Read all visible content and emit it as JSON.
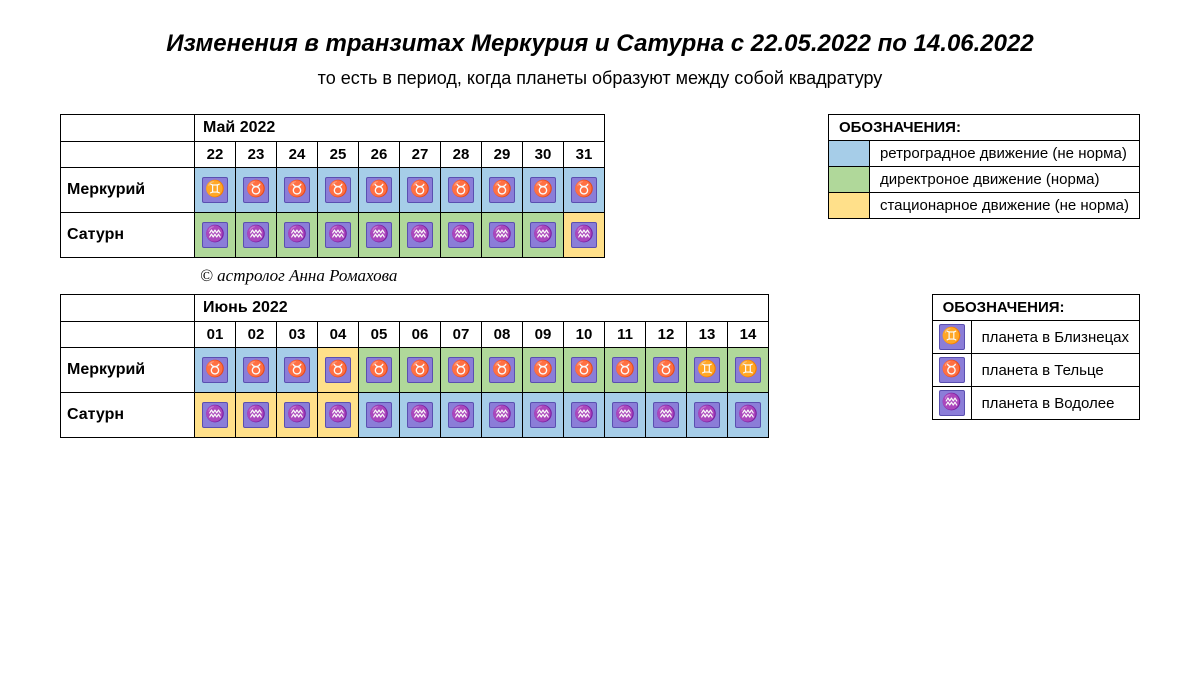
{
  "title": "Изменения в транзитах Меркурия и Сатурна с 22.05.2022 по 14.06.2022",
  "subtitle": "то есть в период, когда планеты образуют между собой квадратуру",
  "credit": "©  астролог Анна Ромахова",
  "colors": {
    "retrograde": "#a6cde8",
    "direct": "#b0d89a",
    "stationary": "#ffe08a",
    "icon_bg": "#8b7dd8",
    "icon_border": "#5a4fb0",
    "border": "#000000"
  },
  "signs": {
    "gemini": {
      "glyph": "♊",
      "label": "планета в Близнецах"
    },
    "taurus": {
      "glyph": "♉",
      "label": "планета в Тельце"
    },
    "aquarius": {
      "glyph": "♒",
      "label": "планета в Водолее"
    }
  },
  "planets": {
    "mercury": "Меркурий",
    "saturn": "Сатурн"
  },
  "may": {
    "month_label": "Май 2022",
    "days": [
      "22",
      "23",
      "24",
      "25",
      "26",
      "27",
      "28",
      "29",
      "30",
      "31"
    ],
    "mercury": [
      {
        "sign": "gemini",
        "motion": "retrograde"
      },
      {
        "sign": "taurus",
        "motion": "retrograde"
      },
      {
        "sign": "taurus",
        "motion": "retrograde"
      },
      {
        "sign": "taurus",
        "motion": "retrograde"
      },
      {
        "sign": "taurus",
        "motion": "retrograde"
      },
      {
        "sign": "taurus",
        "motion": "retrograde"
      },
      {
        "sign": "taurus",
        "motion": "retrograde"
      },
      {
        "sign": "taurus",
        "motion": "retrograde"
      },
      {
        "sign": "taurus",
        "motion": "retrograde"
      },
      {
        "sign": "taurus",
        "motion": "retrograde"
      }
    ],
    "saturn": [
      {
        "sign": "aquarius",
        "motion": "direct"
      },
      {
        "sign": "aquarius",
        "motion": "direct"
      },
      {
        "sign": "aquarius",
        "motion": "direct"
      },
      {
        "sign": "aquarius",
        "motion": "direct"
      },
      {
        "sign": "aquarius",
        "motion": "direct"
      },
      {
        "sign": "aquarius",
        "motion": "direct"
      },
      {
        "sign": "aquarius",
        "motion": "direct"
      },
      {
        "sign": "aquarius",
        "motion": "direct"
      },
      {
        "sign": "aquarius",
        "motion": "direct"
      },
      {
        "sign": "aquarius",
        "motion": "stationary"
      }
    ]
  },
  "june": {
    "month_label": "Июнь 2022",
    "days": [
      "01",
      "02",
      "03",
      "04",
      "05",
      "06",
      "07",
      "08",
      "09",
      "10",
      "11",
      "12",
      "13",
      "14"
    ],
    "mercury": [
      {
        "sign": "taurus",
        "motion": "retrograde"
      },
      {
        "sign": "taurus",
        "motion": "retrograde"
      },
      {
        "sign": "taurus",
        "motion": "retrograde"
      },
      {
        "sign": "taurus",
        "motion": "stationary"
      },
      {
        "sign": "taurus",
        "motion": "direct"
      },
      {
        "sign": "taurus",
        "motion": "direct"
      },
      {
        "sign": "taurus",
        "motion": "direct"
      },
      {
        "sign": "taurus",
        "motion": "direct"
      },
      {
        "sign": "taurus",
        "motion": "direct"
      },
      {
        "sign": "taurus",
        "motion": "direct"
      },
      {
        "sign": "taurus",
        "motion": "direct"
      },
      {
        "sign": "taurus",
        "motion": "direct"
      },
      {
        "sign": "gemini",
        "motion": "direct"
      },
      {
        "sign": "gemini",
        "motion": "direct"
      }
    ],
    "saturn": [
      {
        "sign": "aquarius",
        "motion": "stationary"
      },
      {
        "sign": "aquarius",
        "motion": "stationary"
      },
      {
        "sign": "aquarius",
        "motion": "stationary"
      },
      {
        "sign": "aquarius",
        "motion": "stationary"
      },
      {
        "sign": "aquarius",
        "motion": "retrograde"
      },
      {
        "sign": "aquarius",
        "motion": "retrograde"
      },
      {
        "sign": "aquarius",
        "motion": "retrograde"
      },
      {
        "sign": "aquarius",
        "motion": "retrograde"
      },
      {
        "sign": "aquarius",
        "motion": "retrograde"
      },
      {
        "sign": "aquarius",
        "motion": "retrograde"
      },
      {
        "sign": "aquarius",
        "motion": "retrograde"
      },
      {
        "sign": "aquarius",
        "motion": "retrograde"
      },
      {
        "sign": "aquarius",
        "motion": "retrograde"
      },
      {
        "sign": "aquarius",
        "motion": "retrograde"
      }
    ]
  },
  "legend_motion": {
    "title": "ОБОЗНАЧЕНИЯ:",
    "items": [
      {
        "motion": "retrograde",
        "label": "ретроградное движение (не норма)"
      },
      {
        "motion": "direct",
        "label": "директроное движение (норма)"
      },
      {
        "motion": "stationary",
        "label": "стационарное движение (не норма)"
      }
    ]
  },
  "legend_sign": {
    "title": "ОБОЗНАЧЕНИЯ:",
    "items": [
      {
        "sign": "gemini"
      },
      {
        "sign": "taurus"
      },
      {
        "sign": "aquarius"
      }
    ]
  }
}
